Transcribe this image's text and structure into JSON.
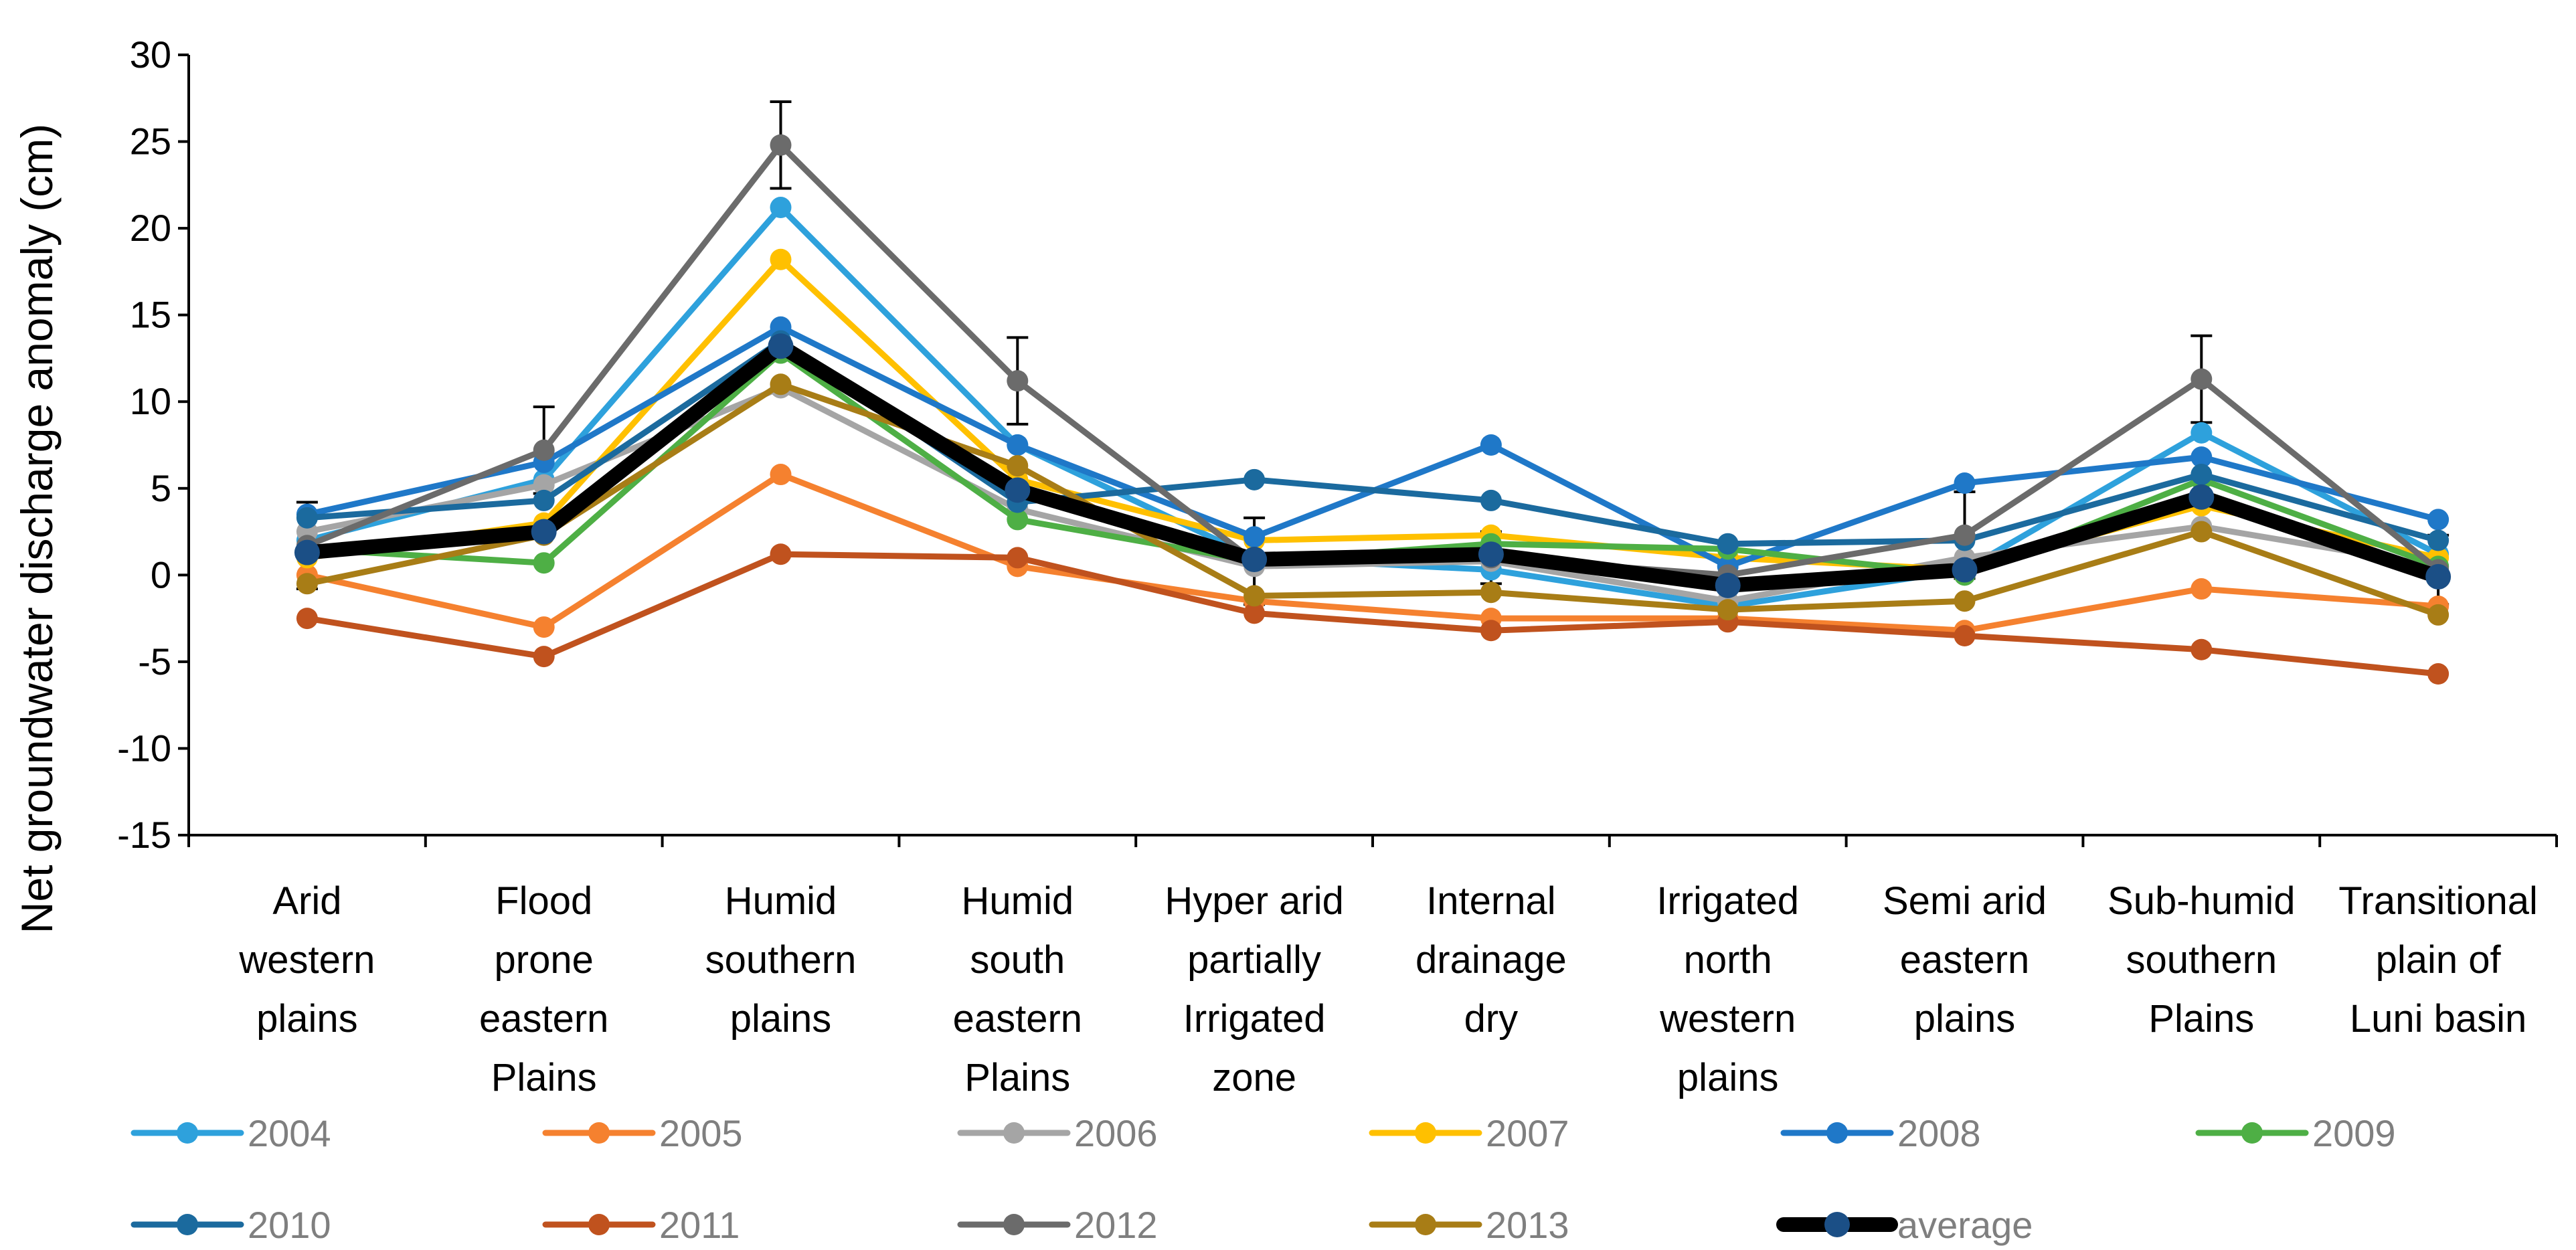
{
  "chart_data": {
    "type": "line",
    "title": "",
    "xlabel": "",
    "ylabel": "Net groundwater discharge anomaly  (cm)",
    "ylim": [
      -15,
      30
    ],
    "ytick_step": 5,
    "grid": false,
    "legend_position": "bottom",
    "categories": [
      [
        "Arid",
        "western",
        "plains"
      ],
      [
        "Flood",
        "prone",
        "eastern",
        "Plains"
      ],
      [
        "Humid",
        "southern",
        "plains"
      ],
      [
        "Humid",
        "south",
        "eastern",
        "Plains"
      ],
      [
        "Hyper arid",
        "partially",
        "Irrigated",
        "zone"
      ],
      [
        "Internal",
        "drainage",
        "dry"
      ],
      [
        "Irrigated",
        "north",
        "western",
        "plains"
      ],
      [
        "Semi arid",
        "eastern",
        "plains"
      ],
      [
        "Sub-humid",
        "southern",
        "Plains"
      ],
      [
        "Transitional",
        "plain of",
        "Luni basin"
      ]
    ],
    "series": [
      {
        "name": "2004",
        "color": "#2EA1DC",
        "values": [
          2.0,
          5.5,
          21.2,
          7.5,
          1.0,
          0.3,
          -1.8,
          0.3,
          8.2,
          1.2
        ]
      },
      {
        "name": "2005",
        "color": "#F5812F",
        "values": [
          0.0,
          -3.0,
          5.8,
          0.5,
          -1.5,
          -2.5,
          -2.5,
          -3.2,
          -0.8,
          -1.8
        ]
      },
      {
        "name": "2006",
        "color": "#A5A5A5",
        "values": [
          2.5,
          5.2,
          10.8,
          3.8,
          0.5,
          0.8,
          -1.5,
          1.0,
          2.8,
          0.5
        ]
      },
      {
        "name": "2007",
        "color": "#FFC000",
        "values": [
          1.0,
          3.0,
          18.2,
          5.5,
          2.0,
          2.3,
          1.0,
          0.3,
          4.0,
          1.0
        ]
      },
      {
        "name": "2008",
        "color": "#1F78C8",
        "values": [
          3.5,
          6.5,
          14.3,
          7.5,
          2.2,
          7.5,
          0.5,
          5.3,
          6.8,
          3.2
        ]
      },
      {
        "name": "2009",
        "color": "#4EAF45",
        "values": [
          1.5,
          0.7,
          12.8,
          3.2,
          0.8,
          1.8,
          1.5,
          0.0,
          5.5,
          0.5
        ]
      },
      {
        "name": "2010",
        "color": "#1B6A9E",
        "values": [
          3.3,
          4.3,
          13.5,
          4.2,
          5.5,
          4.3,
          1.8,
          2.0,
          5.8,
          2.0
        ]
      },
      {
        "name": "2011",
        "color": "#C0521E",
        "values": [
          -2.5,
          -4.7,
          1.2,
          1.0,
          -2.2,
          -3.2,
          -2.7,
          -3.5,
          -4.3,
          -5.7
        ]
      },
      {
        "name": "2012",
        "color": "#6B6B6B",
        "values": [
          1.7,
          7.2,
          24.8,
          11.2,
          0.8,
          1.0,
          0.0,
          2.3,
          11.3,
          0.3
        ]
      },
      {
        "name": "2013",
        "color": "#A87D16",
        "values": [
          -0.5,
          2.3,
          11.0,
          6.3,
          -1.2,
          -1.0,
          -2.0,
          -1.5,
          2.5,
          -2.3
        ]
      },
      {
        "name": "average",
        "color": "#000000",
        "marker_color": "#1B4F86",
        "values": [
          1.3,
          2.5,
          13.2,
          4.9,
          0.9,
          1.2,
          -0.6,
          0.3,
          4.5,
          -0.1
        ]
      }
    ],
    "error_bar_series": "2012",
    "error_bar_half_widths": [
      2.5,
      2.5,
      2.5,
      2.5,
      2.5,
      1.5,
      1.5,
      2.5,
      2.5,
      2.0
    ]
  }
}
